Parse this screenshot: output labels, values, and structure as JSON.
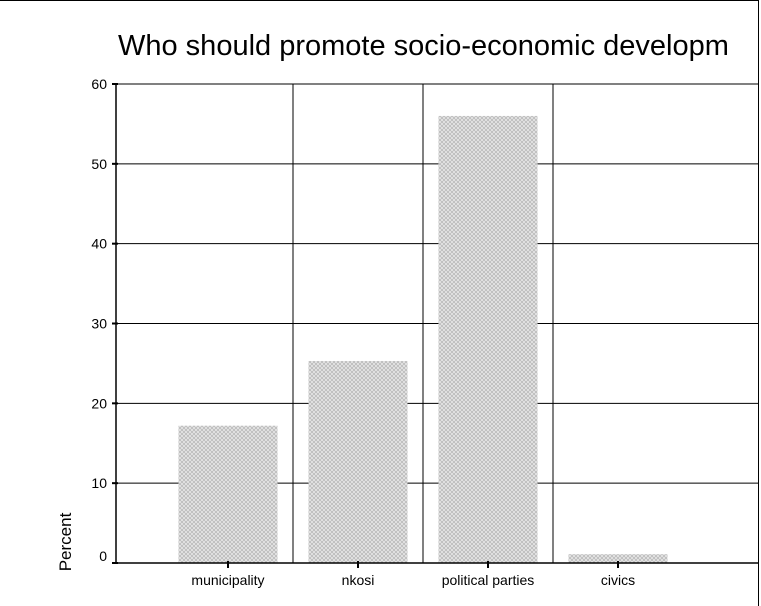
{
  "chart_data": {
    "type": "bar",
    "title": "Who should promote socio-economic developm",
    "ylabel": "Percent",
    "xlabel": "",
    "categories": [
      "municipality",
      "nkosi",
      "political parties",
      "civics"
    ],
    "values": [
      17.2,
      25.3,
      56.0,
      1.1
    ],
    "ylim": [
      0,
      60
    ],
    "yticks": [
      0,
      10,
      20,
      30,
      40,
      50,
      60
    ],
    "grid": true,
    "bar_color": "#d3d3d3"
  }
}
